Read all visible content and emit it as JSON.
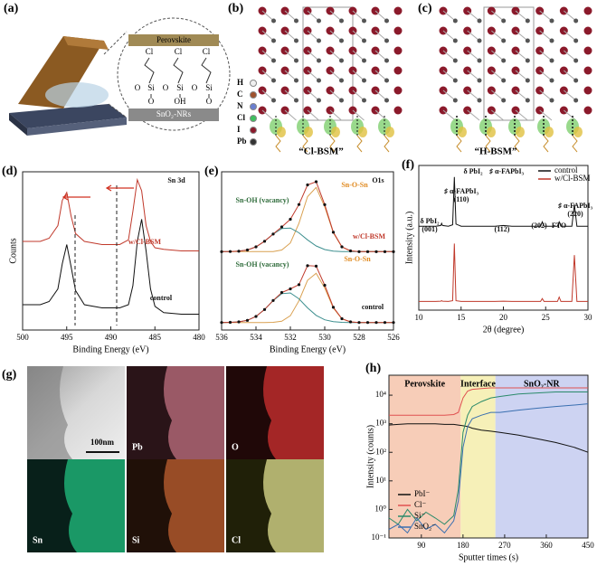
{
  "figure": {
    "a": {
      "label": "(a)",
      "top": "Perovskite",
      "bottom": "SnO₂-NRs",
      "chem": [
        "Cl",
        "Cl",
        "Cl",
        "O",
        "Si",
        "O",
        "Si",
        "O",
        "Si",
        "O",
        "OH",
        "O"
      ]
    },
    "b": {
      "label": "(b)",
      "caption": "“Cl-BSM”",
      "elements": [
        "H",
        "C",
        "N",
        "Cl",
        "I",
        "Pb"
      ]
    },
    "c": {
      "label": "(c)",
      "caption": "“H-BSM”"
    },
    "g": {
      "label": "(g)",
      "scale": "100nm",
      "maps": [
        "Pb",
        "O",
        "Sn",
        "Si",
        "Cl"
      ]
    }
  },
  "chart_data": [
    {
      "type": "line",
      "panel_label": "(d)",
      "xlabel": "Binding Energy (eV)",
      "ylabel": "Counts",
      "x": [
        500,
        498,
        497,
        496,
        495.5,
        495,
        494.5,
        494,
        493,
        491,
        489,
        488,
        487.5,
        487,
        486.5,
        486,
        485.5,
        485,
        484,
        482,
        480
      ],
      "xlim": [
        500,
        480
      ],
      "xticks": [
        500,
        495,
        490,
        485,
        480
      ],
      "ylim": [
        0,
        10
      ],
      "series": [
        {
          "color": "#c0392b",
          "values": [
            5.6,
            5.6,
            5.8,
            6.6,
            8.2,
            8.7,
            7.2,
            6.1,
            5.6,
            5.4,
            5.4,
            5.7,
            7.5,
            9.5,
            8.8,
            6.6,
            5.6,
            5.2,
            5.1,
            5.0,
            5.0
          ]
        },
        {
          "color": "#111111",
          "values": [
            1.6,
            1.6,
            1.8,
            2.6,
            4.2,
            5.4,
            4.0,
            2.5,
            1.6,
            1.4,
            1.4,
            1.6,
            2.8,
            5.6,
            7.0,
            5.0,
            2.6,
            1.5,
            1.1,
            1.0,
            1.0
          ]
        }
      ],
      "annotations": [
        {
          "text": "Sn 3d",
          "color": "#111111"
        },
        {
          "text": "w/Cl-BSM",
          "color": "#c0392b"
        },
        {
          "text": "control",
          "color": "#111111"
        }
      ]
    },
    {
      "type": "line",
      "panel_label": "(e)",
      "xlabel": "Binding Energy (eV)",
      "x": [
        536,
        535.5,
        535,
        534.5,
        534,
        533.5,
        533,
        532.5,
        532,
        531.5,
        531,
        530.5,
        530,
        529.5,
        529,
        528.5,
        528,
        527.5,
        527,
        526.5,
        526
      ],
      "xlim": [
        536,
        526
      ],
      "xticks": [
        536,
        534,
        532,
        530,
        528,
        526
      ],
      "ylim": [
        0,
        10.5
      ],
      "series": [
        {
          "color": "#d9a050",
          "values": [
            5.2,
            5.2,
            5.2,
            5.2,
            5.2,
            5.2,
            5.21,
            5.31,
            5.78,
            7.08,
            8.85,
            9.46,
            8.18,
            6.45,
            5.51,
            5.25,
            5.2,
            5.2,
            5.2,
            5.2,
            5.2
          ]
        },
        {
          "color": "#3d8f8f",
          "values": [
            5.2,
            5.21,
            5.23,
            5.31,
            5.52,
            5.89,
            6.36,
            6.73,
            6.77,
            6.45,
            5.98,
            5.58,
            5.34,
            5.24,
            5.21,
            5.2,
            5.2,
            5.2,
            5.2,
            5.2,
            5.2
          ]
        },
        {
          "color": "#c0392b",
          "markers": true,
          "marker_color": "#111111",
          "values": [
            5.2,
            5.21,
            5.23,
            5.31,
            5.52,
            5.89,
            6.37,
            6.84,
            7.35,
            8.33,
            9.63,
            9.84,
            8.32,
            6.49,
            5.52,
            5.25,
            5.2,
            5.2,
            5.2,
            5.2,
            5.2
          ]
        },
        {
          "color": "#d9a050",
          "values": [
            0.5,
            0.5,
            0.5,
            0.5,
            0.5,
            0.5,
            0.51,
            0.58,
            0.95,
            1.94,
            3.3,
            3.77,
            2.79,
            1.46,
            0.74,
            0.54,
            0.5,
            0.5,
            0.5,
            0.5,
            0.5
          ]
        },
        {
          "color": "#3d8f8f",
          "values": [
            0.5,
            0.51,
            0.54,
            0.64,
            0.9,
            1.36,
            1.95,
            2.41,
            2.46,
            2.07,
            1.47,
            0.97,
            0.68,
            0.55,
            0.51,
            0.5,
            0.5,
            0.5,
            0.5,
            0.5,
            0.5
          ]
        },
        {
          "color": "#c0392b",
          "markers": true,
          "marker_color": "#111111",
          "values": [
            0.5,
            0.51,
            0.54,
            0.64,
            0.9,
            1.36,
            1.96,
            2.49,
            2.73,
            3.01,
            4.27,
            4.24,
            2.97,
            1.51,
            0.75,
            0.54,
            0.5,
            0.5,
            0.5,
            0.5,
            0.5
          ]
        }
      ],
      "annotations": [
        {
          "text": "O1s",
          "color": "#111111"
        },
        {
          "text": "Sn-OH (vacancy)",
          "color": "#2e6b3a"
        },
        {
          "text": "Sn-O-Sn",
          "color": "#e08a20"
        },
        {
          "text": "w/Cl-BSM",
          "color": "#c0392b"
        },
        {
          "text": "Sn-OH (vacancy)",
          "color": "#2e6b3a"
        },
        {
          "text": "Sn-O-Sn",
          "color": "#e08a20"
        },
        {
          "text": "control",
          "color": "#111111"
        }
      ]
    },
    {
      "type": "line",
      "panel_label": "(f)",
      "xlabel": "2θ (degree)",
      "ylabel": "Intensity (a.u.)",
      "x": [
        10,
        12,
        12.6,
        12.7,
        12.8,
        13.5,
        14,
        14.2,
        14.4,
        15,
        19,
        20,
        21,
        24.4,
        24.6,
        24.8,
        26.4,
        26.6,
        26.8,
        28.1,
        28.4,
        28.7,
        30
      ],
      "xlim": [
        10,
        30
      ],
      "xticks": [
        10,
        15,
        20,
        25,
        30
      ],
      "ylim": [
        0,
        10
      ],
      "legend": "upper right",
      "series": [
        {
          "name": "control",
          "color": "#111111",
          "values": [
            5.8,
            5.8,
            5.85,
            6.0,
            5.85,
            5.8,
            5.9,
            9.2,
            5.95,
            5.8,
            5.8,
            5.85,
            5.8,
            5.8,
            6.1,
            5.8,
            5.8,
            6.1,
            5.8,
            5.8,
            7.3,
            5.8,
            5.8
          ]
        },
        {
          "name": "w/Cl-BSM",
          "color": "#c0392b",
          "values": [
            0.6,
            0.6,
            0.62,
            0.65,
            0.62,
            0.6,
            0.65,
            4.6,
            0.65,
            0.6,
            0.6,
            0.62,
            0.6,
            0.6,
            0.8,
            0.6,
            0.6,
            0.9,
            0.6,
            0.6,
            3.8,
            0.6,
            0.6
          ]
        }
      ],
      "annotations": [
        {
          "text": "δ PbI₂",
          "color": "#111111"
        },
        {
          "text": "♯ α-FAPbI₃",
          "color": "#111111"
        },
        {
          "text": "δ PbI₂",
          "color": "#111111"
        },
        {
          "text": "(001)",
          "color": "#111111"
        },
        {
          "text": "♯ α-FAPbI₃",
          "color": "#111111"
        },
        {
          "text": "(110)",
          "color": "#111111"
        },
        {
          "text": "(112)",
          "color": "#111111"
        },
        {
          "text": "(202)",
          "color": "#111111"
        },
        {
          "text": "FTO",
          "color": "#111111"
        },
        {
          "text": "♯ α-FAPbI₃",
          "color": "#111111"
        },
        {
          "text": "(220)",
          "color": "#111111"
        }
      ]
    },
    {
      "type": "line",
      "panel_label": "(h)",
      "xlabel": "Sputter times (s)",
      "ylabel": "Intensity (counts)",
      "yscale": "log",
      "x": [
        20,
        40,
        60,
        80,
        100,
        120,
        140,
        160,
        170,
        180,
        190,
        200,
        220,
        240,
        260,
        300,
        340,
        380,
        420,
        450
      ],
      "xlim": [
        20,
        450
      ],
      "xticks": [
        90,
        180,
        270,
        360,
        450
      ],
      "ylim": [
        0.1,
        50000
      ],
      "yticks": [
        {
          "value": 0.1,
          "label": "10⁻¹"
        },
        {
          "value": 1,
          "label": "10⁰"
        },
        {
          "value": 10,
          "label": "10¹"
        },
        {
          "value": 100,
          "label": "10²"
        },
        {
          "value": 1000,
          "label": "10³"
        },
        {
          "value": 10000,
          "label": "10⁴"
        }
      ],
      "legend": "lower left",
      "regions": [
        {
          "label": "Perovskite",
          "color": "#f7cdb8",
          "xlim": [
            20,
            175
          ]
        },
        {
          "label": "Interface",
          "color": "#f6f0b8",
          "xlim": [
            175,
            250
          ]
        },
        {
          "label": "SnO₂-NR",
          "color": "#cdd3f2",
          "xlim": [
            250,
            450
          ]
        }
      ],
      "series": [
        {
          "name": "PbI⁻",
          "color": "#111111",
          "values": [
            900,
            950,
            1000,
            1000,
            1000,
            1000,
            950,
            950,
            900,
            850,
            800,
            700,
            600,
            550,
            500,
            400,
            300,
            220,
            150,
            100
          ]
        },
        {
          "name": "Cl⁻",
          "color": "#e05050",
          "values": [
            2000,
            2000,
            2000,
            2000,
            2000,
            2000,
            2000,
            2100,
            2500,
            8000,
            14000,
            16000,
            17000,
            18000,
            18000,
            18000,
            18000,
            18000,
            18000,
            18000
          ]
        },
        {
          "name": "Si⁻",
          "color": "#2a8a6a",
          "values": [
            0.5,
            0.3,
            1,
            0.4,
            0.8,
            0.5,
            0.3,
            0.6,
            5,
            500,
            2000,
            4000,
            6000,
            8000,
            9000,
            11000,
            12000,
            13000,
            13000,
            13000
          ]
        },
        {
          "name": "SnO₂⁻",
          "color": "#3a6fb0",
          "values": [
            0.2,
            0.3,
            0.15,
            0.5,
            0.2,
            0.3,
            0.15,
            0.4,
            2,
            150,
            800,
            1500,
            2000,
            2500,
            2500,
            3000,
            3500,
            4000,
            4500,
            5000
          ]
        }
      ]
    }
  ]
}
